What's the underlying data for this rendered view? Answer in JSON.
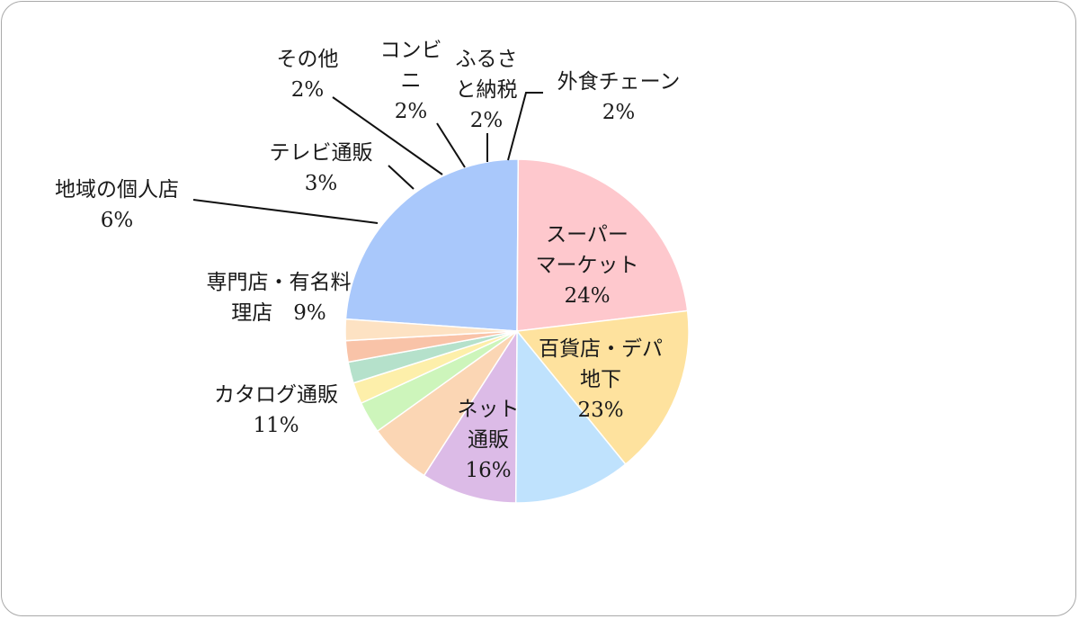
{
  "chart_data": {
    "type": "pie",
    "title": "",
    "legend": "none",
    "slices": [
      {
        "label_lines": [
          "スーパー",
          "マーケット"
        ],
        "value": 24,
        "value_text": "24%",
        "color": "#a9c8fb"
      },
      {
        "label_lines": [
          "百貨店・デパ",
          "地下"
        ],
        "value": 23,
        "value_text": "23%",
        "color": "#fec8cd"
      },
      {
        "label_lines": [
          "ネット",
          "通販"
        ],
        "value": 16,
        "value_text": "16%",
        "color": "#fee29e"
      },
      {
        "label_lines": [
          "カタログ通販"
        ],
        "value": 11,
        "value_text": "11%",
        "color": "#bfe2fd"
      },
      {
        "label_lines": [
          "専門店・有名料",
          "理店"
        ],
        "value": 9,
        "value_text": "9%",
        "color": "#dcbbe7"
      },
      {
        "label_lines": [
          "地域の個人店"
        ],
        "value": 6,
        "value_text": "6%",
        "color": "#fbd6b4"
      },
      {
        "label_lines": [
          "テレビ通販"
        ],
        "value": 3,
        "value_text": "3%",
        "color": "#cdf5bb"
      },
      {
        "label_lines": [
          "その他"
        ],
        "value": 2,
        "value_text": "2%",
        "color": "#fdefaa"
      },
      {
        "label_lines": [
          "コンビ",
          "ニ"
        ],
        "value": 2,
        "value_text": "2%",
        "color": "#b5e1cb"
      },
      {
        "label_lines": [
          "ふるさ",
          "と納税"
        ],
        "value": 2,
        "value_text": "2%",
        "color": "#f9c3a8"
      },
      {
        "label_lines": [
          "外食チェーン"
        ],
        "value": 2,
        "value_text": "2%",
        "color": "#fde2c3"
      }
    ]
  }
}
